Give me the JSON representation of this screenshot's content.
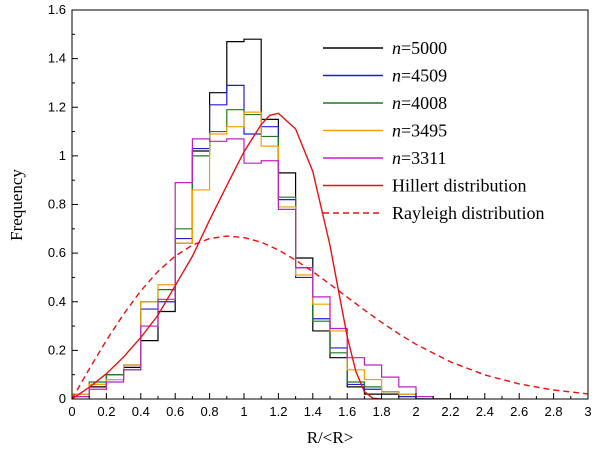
{
  "chart_data": {
    "type": "line",
    "xlabel": "R/<R>",
    "ylabel": "Frequency",
    "xlim": [
      0,
      3
    ],
    "ylim": [
      0,
      1.6
    ],
    "x_ticks": [
      "0",
      "0.2",
      "0.4",
      "0.6",
      "0.8",
      "1",
      "1.2",
      "1.4",
      "1.6",
      "1.8",
      "2",
      "2.2",
      "2.4",
      "2.6",
      "2.8",
      "3"
    ],
    "y_ticks": [
      "0",
      "0.2",
      "0.4",
      "0.6",
      "0.8",
      "1",
      "1.2",
      "1.4",
      "1.6"
    ],
    "grid": false,
    "legend_position": "top-right",
    "bin_width": 0.1,
    "bin_starts": [
      0.0,
      0.1,
      0.2,
      0.3,
      0.4,
      0.5,
      0.6,
      0.7,
      0.8,
      0.9,
      1.0,
      1.1,
      1.2,
      1.3,
      1.4,
      1.5,
      1.6,
      1.7,
      1.8,
      1.9,
      2.0,
      2.1,
      2.2
    ],
    "series": [
      {
        "name": "n=5000",
        "legend_prefix": "n",
        "legend_suffix": "=5000",
        "style": "step",
        "color": "#000000",
        "values": [
          0.01,
          0.05,
          0.1,
          0.13,
          0.24,
          0.36,
          0.64,
          1.02,
          1.26,
          1.47,
          1.48,
          1.15,
          0.93,
          0.58,
          0.28,
          0.17,
          0.05,
          0.02,
          0.02,
          0.01,
          0.0,
          0.0,
          0.0
        ]
      },
      {
        "name": "n=4509",
        "legend_prefix": "n",
        "legend_suffix": "=4509",
        "style": "step",
        "color": "#1e1ed8",
        "values": [
          0.02,
          0.06,
          0.08,
          0.14,
          0.37,
          0.4,
          0.66,
          1.03,
          1.21,
          1.29,
          1.09,
          1.12,
          0.82,
          0.5,
          0.33,
          0.21,
          0.06,
          0.04,
          0.03,
          0.01,
          0.0,
          0.0,
          0.0
        ]
      },
      {
        "name": "n=4008",
        "legend_prefix": "n",
        "legend_suffix": "=4008",
        "style": "step",
        "color": "#1d7a1d",
        "values": [
          0.01,
          0.07,
          0.1,
          0.12,
          0.4,
          0.45,
          0.7,
          1.0,
          1.1,
          1.19,
          1.17,
          1.08,
          0.83,
          0.54,
          0.32,
          0.19,
          0.07,
          0.05,
          0.03,
          0.02,
          0.0,
          0.0,
          0.0
        ]
      },
      {
        "name": "n=3495",
        "legend_prefix": "n",
        "legend_suffix": "=3495",
        "style": "step",
        "color": "#f5a000",
        "values": [
          0.02,
          0.06,
          0.08,
          0.14,
          0.4,
          0.47,
          0.64,
          0.86,
          1.09,
          1.12,
          1.18,
          1.04,
          0.79,
          0.51,
          0.39,
          0.28,
          0.12,
          0.08,
          0.03,
          0.02,
          0.01,
          0.0,
          0.0
        ]
      },
      {
        "name": "n=3311",
        "legend_prefix": "n",
        "legend_suffix": "=3311",
        "style": "step",
        "color": "#c020c0",
        "values": [
          0.01,
          0.04,
          0.07,
          0.12,
          0.3,
          0.41,
          0.89,
          1.07,
          1.06,
          1.07,
          0.97,
          0.98,
          0.78,
          0.54,
          0.42,
          0.29,
          0.17,
          0.14,
          0.09,
          0.05,
          0.01,
          0.0,
          0.0
        ]
      },
      {
        "name": "Hillert distribution",
        "style": "solid",
        "color": "#e81010",
        "x": [
          0.0,
          0.1,
          0.2,
          0.3,
          0.4,
          0.5,
          0.6,
          0.7,
          0.8,
          0.9,
          1.0,
          1.1,
          1.15,
          1.2,
          1.3,
          1.4,
          1.5,
          1.55,
          1.6,
          1.65,
          1.7,
          1.75,
          1.8
        ],
        "y": [
          0.0,
          0.048,
          0.104,
          0.173,
          0.253,
          0.345,
          0.466,
          0.587,
          0.736,
          0.878,
          1.017,
          1.129,
          1.167,
          1.175,
          1.111,
          0.936,
          0.632,
          0.443,
          0.257,
          0.114,
          0.03,
          0.003,
          0.0
        ]
      },
      {
        "name": "Rayleigh distribution",
        "style": "dashed",
        "color": "#e81010",
        "x": [
          0.0,
          0.1,
          0.2,
          0.3,
          0.4,
          0.5,
          0.6,
          0.7,
          0.8,
          0.9,
          1.0,
          1.1,
          1.2,
          1.3,
          1.4,
          1.5,
          1.6,
          1.7,
          1.8,
          1.9,
          2.0,
          2.2,
          2.4,
          2.6,
          2.8,
          3.0
        ],
        "y": [
          0.0,
          0.123,
          0.241,
          0.349,
          0.445,
          0.525,
          0.588,
          0.633,
          0.66,
          0.67,
          0.664,
          0.645,
          0.613,
          0.571,
          0.524,
          0.472,
          0.419,
          0.366,
          0.315,
          0.268,
          0.225,
          0.153,
          0.099,
          0.062,
          0.037,
          0.021
        ]
      }
    ]
  }
}
